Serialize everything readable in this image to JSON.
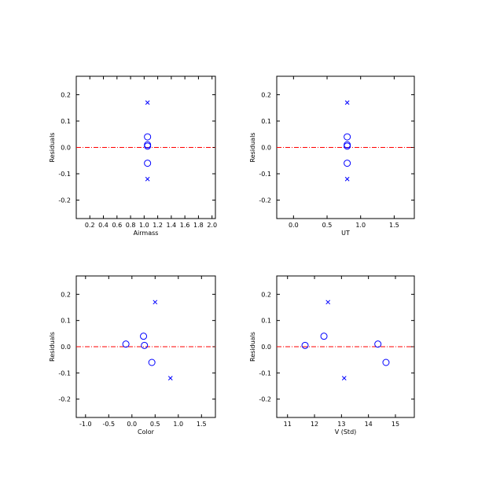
{
  "colors": {
    "marker": "#0000ff",
    "zero_line": "#ff0000",
    "axis": "#000000",
    "background": "#ffffff"
  },
  "chart_data": [
    {
      "type": "scatter",
      "xlabel": "Airmass",
      "ylabel": "Residuals",
      "xlim": [
        0.0,
        2.05
      ],
      "ylim": [
        -0.27,
        0.27
      ],
      "xticks": [
        0.2,
        0.4,
        0.6,
        0.8,
        1.0,
        1.2,
        1.4,
        1.6,
        1.8,
        2.0
      ],
      "xtick_labels": [
        "0.2",
        "0.4",
        "0.6",
        "0.8",
        "1.0",
        "1.2",
        "1.4",
        "1.6",
        "1.8",
        "2.0"
      ],
      "yticks": [
        -0.2,
        -0.1,
        0.0,
        0.1,
        0.2
      ],
      "ytick_labels": [
        "-0.2",
        "-0.1",
        "0.0",
        "0.1",
        "0.2"
      ],
      "zero_line": 0.0,
      "points": [
        {
          "x": 1.05,
          "y": 0.17,
          "marker": "x"
        },
        {
          "x": 1.05,
          "y": 0.04,
          "marker": "o"
        },
        {
          "x": 1.05,
          "y": 0.01,
          "marker": "o"
        },
        {
          "x": 1.05,
          "y": 0.005,
          "marker": "o"
        },
        {
          "x": 1.05,
          "y": -0.06,
          "marker": "o"
        },
        {
          "x": 1.05,
          "y": -0.12,
          "marker": "x"
        }
      ]
    },
    {
      "type": "scatter",
      "xlabel": "UT",
      "ylabel": "Residuals",
      "xlim": [
        -0.25,
        1.8
      ],
      "ylim": [
        -0.27,
        0.27
      ],
      "xticks": [
        0.0,
        0.5,
        1.0,
        1.5
      ],
      "xtick_labels": [
        "0.0",
        "0.5",
        "1.0",
        "1.5"
      ],
      "yticks": [
        -0.2,
        -0.1,
        0.0,
        0.1,
        0.2
      ],
      "ytick_labels": [
        "-0.2",
        "-0.1",
        "0.0",
        "0.1",
        "0.2"
      ],
      "zero_line": 0.0,
      "points": [
        {
          "x": 0.8,
          "y": 0.17,
          "marker": "x"
        },
        {
          "x": 0.8,
          "y": 0.04,
          "marker": "o"
        },
        {
          "x": 0.8,
          "y": 0.01,
          "marker": "o"
        },
        {
          "x": 0.8,
          "y": 0.005,
          "marker": "o"
        },
        {
          "x": 0.8,
          "y": -0.06,
          "marker": "o"
        },
        {
          "x": 0.8,
          "y": -0.12,
          "marker": "x"
        }
      ]
    },
    {
      "type": "scatter",
      "xlabel": "Color",
      "ylabel": "Residuals",
      "xlim": [
        -1.2,
        1.8
      ],
      "ylim": [
        -0.27,
        0.27
      ],
      "xticks": [
        -1.0,
        -0.5,
        0.0,
        0.5,
        1.0,
        1.5
      ],
      "xtick_labels": [
        "-1.0",
        "-0.5",
        "0.0",
        "0.5",
        "1.0",
        "1.5"
      ],
      "yticks": [
        -0.2,
        -0.1,
        0.0,
        0.1,
        0.2
      ],
      "ytick_labels": [
        "-0.2",
        "-0.1",
        "0.0",
        "0.1",
        "0.2"
      ],
      "zero_line": 0.0,
      "points": [
        {
          "x": 0.5,
          "y": 0.17,
          "marker": "x"
        },
        {
          "x": 0.25,
          "y": 0.04,
          "marker": "o"
        },
        {
          "x": -0.13,
          "y": 0.01,
          "marker": "o"
        },
        {
          "x": 0.27,
          "y": 0.005,
          "marker": "o"
        },
        {
          "x": 0.43,
          "y": -0.06,
          "marker": "o"
        },
        {
          "x": 0.83,
          "y": -0.12,
          "marker": "x"
        }
      ]
    },
    {
      "type": "scatter",
      "xlabel": "V (Std)",
      "ylabel": "Residuals",
      "xlim": [
        10.6,
        15.7
      ],
      "ylim": [
        -0.27,
        0.27
      ],
      "xticks": [
        11,
        12,
        13,
        14,
        15
      ],
      "xtick_labels": [
        "11",
        "12",
        "13",
        "14",
        "15"
      ],
      "yticks": [
        -0.2,
        -0.1,
        0.0,
        0.1,
        0.2
      ],
      "ytick_labels": [
        "-0.2",
        "-0.1",
        "0.0",
        "0.1",
        "0.2"
      ],
      "zero_line": 0.0,
      "points": [
        {
          "x": 12.5,
          "y": 0.17,
          "marker": "x"
        },
        {
          "x": 12.35,
          "y": 0.04,
          "marker": "o"
        },
        {
          "x": 14.35,
          "y": 0.01,
          "marker": "o"
        },
        {
          "x": 11.65,
          "y": 0.005,
          "marker": "o"
        },
        {
          "x": 14.65,
          "y": -0.06,
          "marker": "o"
        },
        {
          "x": 13.1,
          "y": -0.12,
          "marker": "x"
        }
      ]
    }
  ]
}
